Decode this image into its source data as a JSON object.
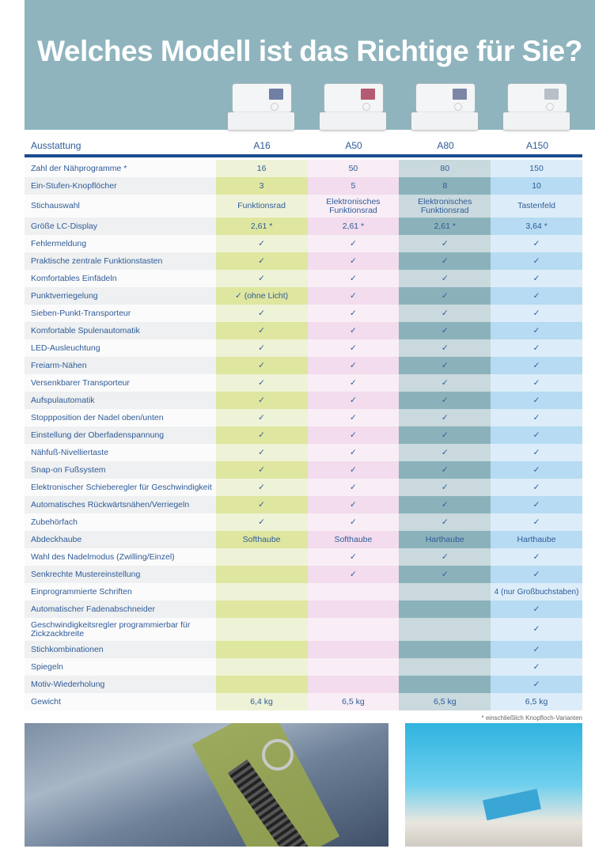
{
  "title": "Welches Modell ist das Richtige für Sie?",
  "header": {
    "feature_label": "Ausstattung",
    "models": [
      "A16",
      "A50",
      "A80",
      "A150"
    ]
  },
  "colors": {
    "band": "#8fb4be",
    "text": "#2f5b97",
    "rule": "#1b4c8f",
    "A16": "#dfe69f",
    "A50": "#f2dced",
    "A80": "#8bb2bb",
    "A150": "#b6dbf2"
  },
  "rows": [
    {
      "label": "Zahl der Nähprogramme *",
      "values": [
        "16",
        "50",
        "80",
        "150"
      ]
    },
    {
      "label": "Ein-Stufen-Knopflöcher",
      "values": [
        "3",
        "5",
        "8",
        "10"
      ]
    },
    {
      "label": "Stichauswahl",
      "values": [
        "Funktionsrad",
        "Elektronisches Funktionsrad",
        "Elektronisches Funktionsrad",
        "Tastenfeld"
      ],
      "tall": true
    },
    {
      "label": "Größe LC-Display",
      "values": [
        "2,61 *",
        "2,61 *",
        "2,61 *",
        "3,64 *"
      ]
    },
    {
      "label": "Fehlermeldung",
      "values": [
        "✓",
        "✓",
        "✓",
        "✓"
      ]
    },
    {
      "label": "Praktische zentrale Funktionstasten",
      "values": [
        "✓",
        "✓",
        "✓",
        "✓"
      ]
    },
    {
      "label": "Komfortables Einfädeln",
      "values": [
        "✓",
        "✓",
        "✓",
        "✓"
      ]
    },
    {
      "label": "Punktverriegelung",
      "values": [
        "✓ (ohne Licht)",
        "✓",
        "✓",
        "✓"
      ]
    },
    {
      "label": "Sieben-Punkt-Transporteur",
      "values": [
        "✓",
        "✓",
        "✓",
        "✓"
      ]
    },
    {
      "label": "Komfortable Spulenautomatik",
      "values": [
        "✓",
        "✓",
        "✓",
        "✓"
      ]
    },
    {
      "label": "LED-Ausleuchtung",
      "values": [
        "✓",
        "✓",
        "✓",
        "✓"
      ]
    },
    {
      "label": "Freiarm-Nähen",
      "values": [
        "✓",
        "✓",
        "✓",
        "✓"
      ]
    },
    {
      "label": "Versenkbarer Transporteur",
      "values": [
        "✓",
        "✓",
        "✓",
        "✓"
      ]
    },
    {
      "label": "Aufspulautomatik",
      "values": [
        "✓",
        "✓",
        "✓",
        "✓"
      ]
    },
    {
      "label": "Stoppposition der Nadel oben/unten",
      "values": [
        "✓",
        "✓",
        "✓",
        "✓"
      ]
    },
    {
      "label": "Einstellung der Oberfadenspannung",
      "values": [
        "✓",
        "✓",
        "✓",
        "✓"
      ]
    },
    {
      "label": "Nähfuß-Nivelliertaste",
      "values": [
        "✓",
        "✓",
        "✓",
        "✓"
      ]
    },
    {
      "label": "Snap-on Fußsystem",
      "values": [
        "✓",
        "✓",
        "✓",
        "✓"
      ]
    },
    {
      "label": "Elektronischer Schieberegler für Geschwindigkeit",
      "values": [
        "✓",
        "✓",
        "✓",
        "✓"
      ]
    },
    {
      "label": "Automatisches Rückwärtsnähen/Verriegeln",
      "values": [
        "✓",
        "✓",
        "✓",
        "✓"
      ]
    },
    {
      "label": "Zubehörfach",
      "values": [
        "✓",
        "✓",
        "✓",
        "✓"
      ]
    },
    {
      "label": "Abdeckhaube",
      "values": [
        "Softhaube",
        "Softhaube",
        "Harthaube",
        "Harthaube"
      ]
    },
    {
      "label": "Wahl des Nadelmodus (Zwilling/Einzel)",
      "values": [
        "",
        "✓",
        "✓",
        "✓"
      ]
    },
    {
      "label": "Senkrechte Mustereinstellung",
      "values": [
        "",
        "✓",
        "✓",
        "✓"
      ]
    },
    {
      "label": "Einprogrammierte Schriften",
      "values": [
        "",
        "",
        "",
        "4 (nur Großbuchstaben)"
      ]
    },
    {
      "label": "Automatischer Fadenabschneider",
      "values": [
        "",
        "",
        "",
        "✓"
      ]
    },
    {
      "label": "Geschwindigkeitsregler programmierbar für Zickzackbreite",
      "values": [
        "",
        "",
        "",
        "✓"
      ],
      "tall": true
    },
    {
      "label": "Stichkombinationen",
      "values": [
        "",
        "",
        "",
        "✓"
      ]
    },
    {
      "label": "Spiegeln",
      "values": [
        "",
        "",
        "",
        "✓"
      ]
    },
    {
      "label": "Motiv-Wiederholung",
      "values": [
        "",
        "",
        "",
        "✓"
      ]
    },
    {
      "label": "Gewicht",
      "values": [
        "6,4 kg",
        "6,5 kg",
        "6,5 kg",
        "6,5 kg"
      ]
    }
  ],
  "footnote": "* einschließlich Knopfloch-Varianten"
}
